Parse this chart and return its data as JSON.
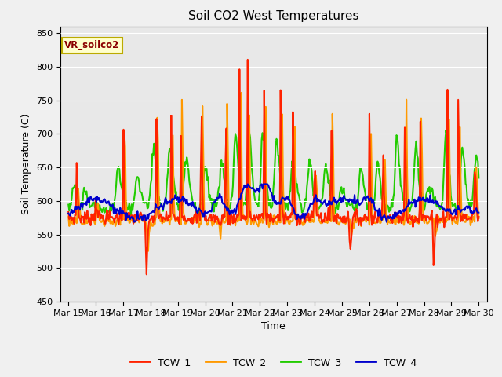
{
  "title": "Soil CO2 West Temperatures",
  "xlabel": "Time",
  "ylabel": "Soil Temperature (C)",
  "ylim": [
    450,
    860
  ],
  "yticks": [
    450,
    500,
    550,
    600,
    650,
    700,
    750,
    800,
    850
  ],
  "annotation": "VR_soilco2",
  "bg_color": "#e8e8e8",
  "fig_color": "#f0f0f0",
  "series_colors": [
    "#ff2200",
    "#ff9900",
    "#22cc00",
    "#0000cc"
  ],
  "series_names": [
    "TCW_1",
    "TCW_2",
    "TCW_3",
    "TCW_4"
  ],
  "x_labels": [
    "Mar 15",
    "Mar 16",
    "Mar 17",
    "Mar 18",
    "Mar 19",
    "Mar 20",
    "Mar 21",
    "Mar 22",
    "Mar 23",
    "Mar 24",
    "Mar 25",
    "Mar 26",
    "Mar 27",
    "Mar 28",
    "Mar 29",
    "Mar 30"
  ],
  "n_points": 500,
  "linewidth": 1.5
}
